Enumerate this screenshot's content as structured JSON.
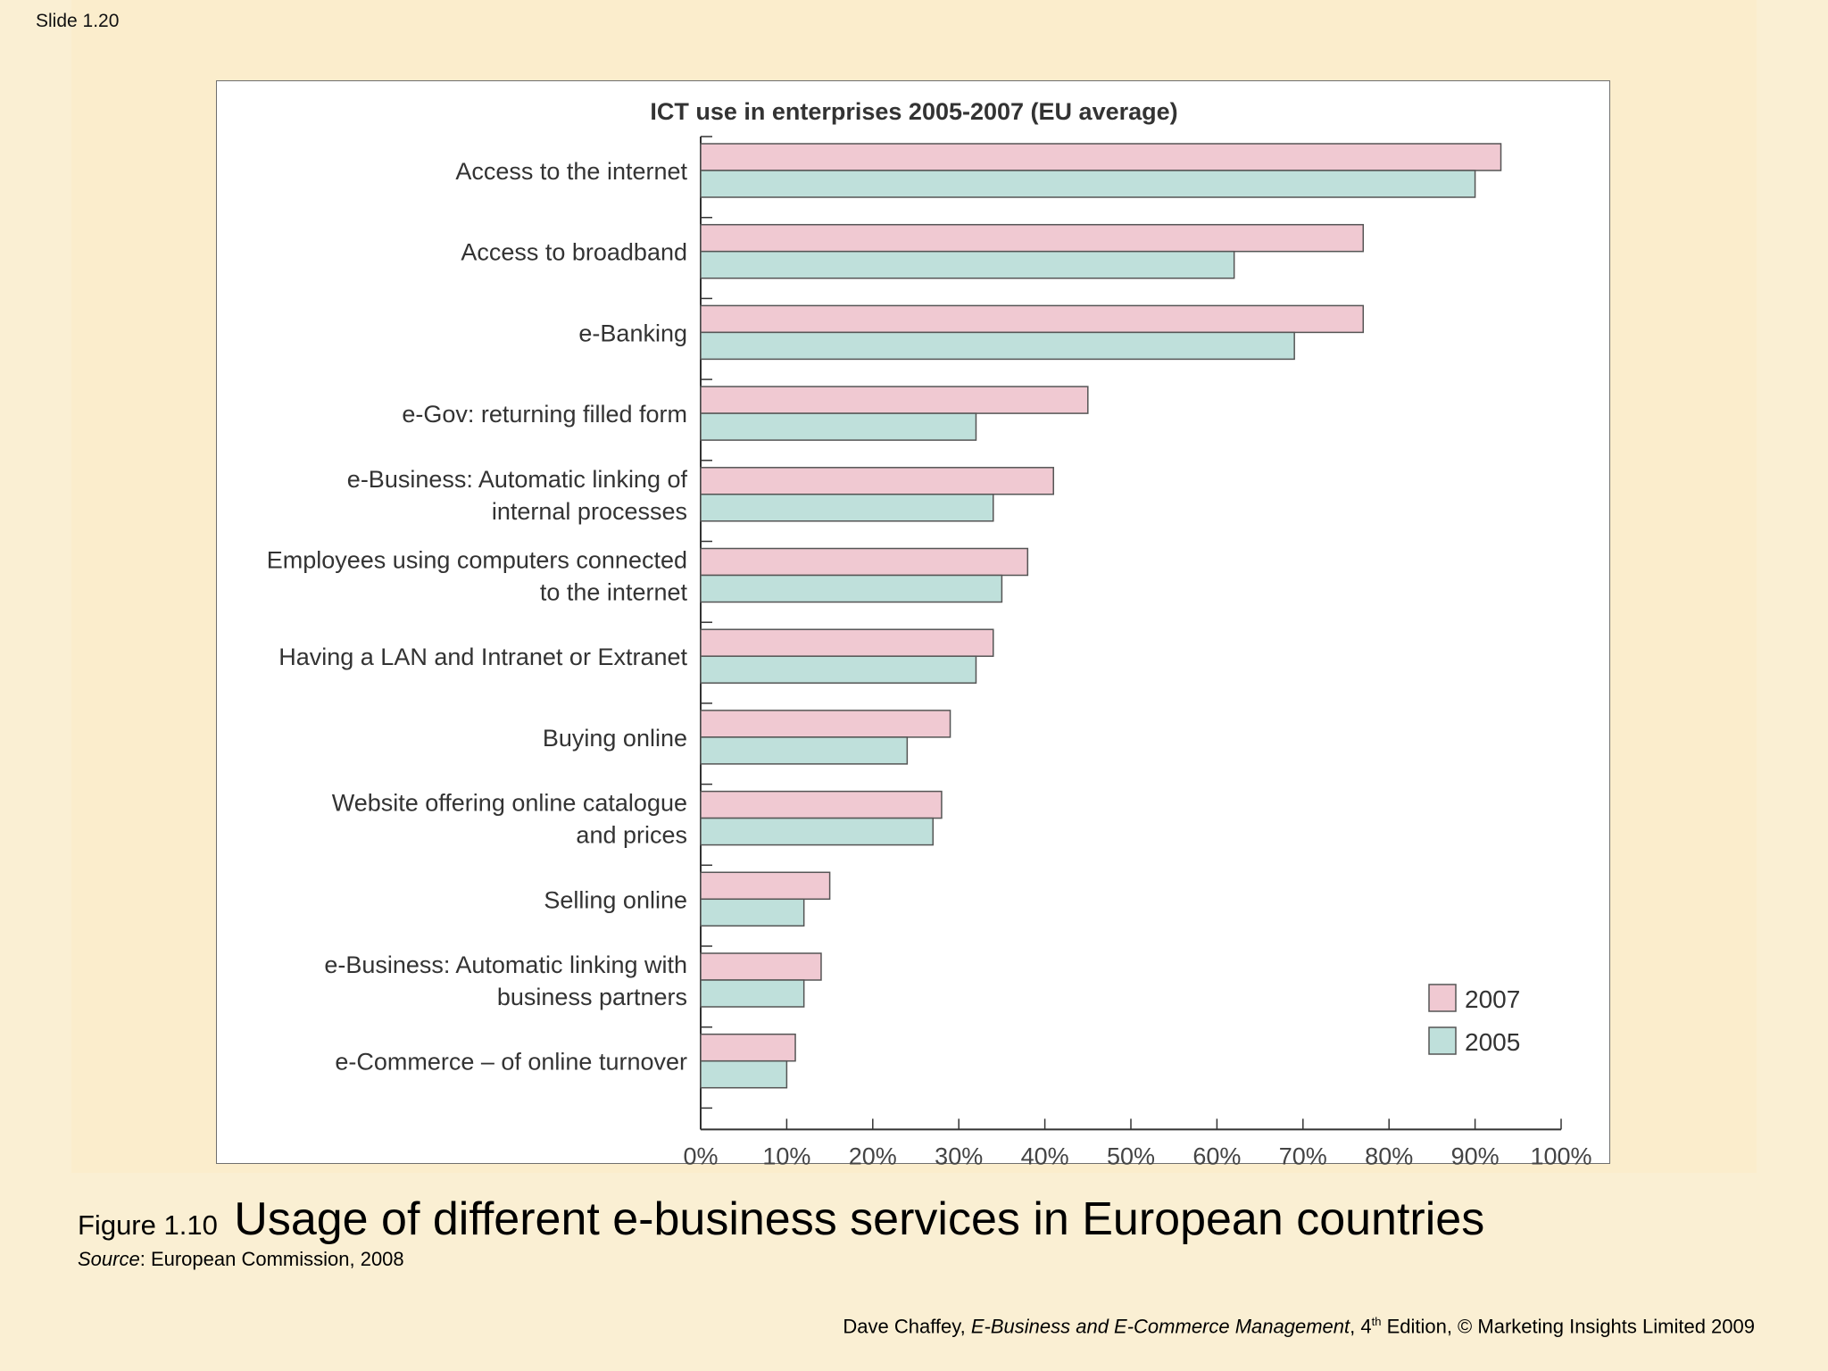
{
  "slide": {
    "number_label": "Slide 1.20"
  },
  "caption": {
    "figure_number": "Figure 1.10",
    "figure_title": "Usage of different e-business services in European countries",
    "source_label": "Source",
    "source_text": ": European Commission, 2008"
  },
  "footer": {
    "author": "Dave Chaffey, ",
    "book_title": "E-Business and E-Commerce Management",
    "edition_pre": ", 4",
    "edition_sup": "th",
    "edition_post": " Edition, © Marketing Insights Limited 2009"
  },
  "chart_data": {
    "type": "bar",
    "orientation": "horizontal",
    "title": "ICT use in enterprises 2005-2007 (EU average)",
    "xlabel": "",
    "ylabel": "",
    "xlim": [
      0,
      100
    ],
    "x_ticks": [
      "0%",
      "10%",
      "20%",
      "30%",
      "40%",
      "50%",
      "60%",
      "70%",
      "80%",
      "90%",
      "100%"
    ],
    "grid": false,
    "legend_position": "bottom-right",
    "categories": [
      [
        "Access to the internet"
      ],
      [
        "Access to broadband"
      ],
      [
        "e-Banking"
      ],
      [
        "e-Gov: returning filled form"
      ],
      [
        "e-Business: Automatic linking of",
        "internal processes"
      ],
      [
        "Employees using computers connected",
        "to the internet"
      ],
      [
        "Having a LAN and Intranet or Extranet"
      ],
      [
        "Buying online"
      ],
      [
        "Website offering online catalogue",
        "and prices"
      ],
      [
        "Selling online"
      ],
      [
        "e-Business: Automatic linking with",
        "business partners"
      ],
      [
        "e-Commerce – of online turnover"
      ]
    ],
    "series": [
      {
        "name": "2007",
        "color": "#f0c9d2",
        "values": [
          93,
          77,
          77,
          45,
          41,
          38,
          34,
          29,
          28,
          15,
          14,
          11
        ]
      },
      {
        "name": "2005",
        "color": "#bfe0db",
        "values": [
          90,
          62,
          69,
          32,
          34,
          35,
          32,
          24,
          27,
          12,
          12,
          10
        ]
      }
    ]
  }
}
